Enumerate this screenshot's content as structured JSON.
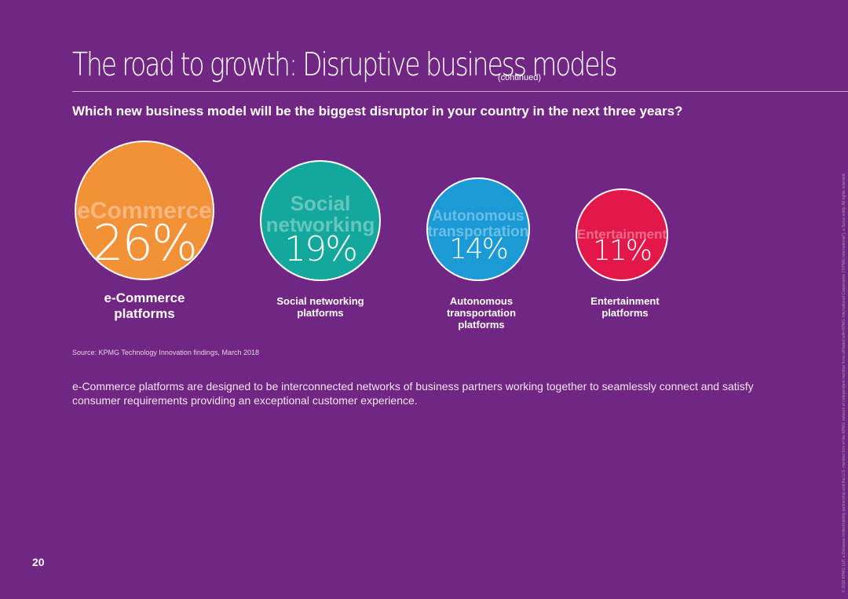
{
  "header": {
    "title": "The road to growth: Disruptive business models",
    "title_suffix": "(continued)"
  },
  "question": "Which new business model will be the biggest disruptor in your country in the next three years?",
  "chart_data": {
    "type": "bubble",
    "categories": [
      "e-Commerce platforms",
      "Social networking platforms",
      "Autonomous transportation platforms",
      "Entertainment platforms"
    ],
    "values": [
      26,
      19,
      14,
      11
    ],
    "unit": "%",
    "value_labels": [
      "26%",
      "19%",
      "14%",
      "11%"
    ],
    "bubble_words": [
      "eCommerce",
      "Social networking",
      "Autonomous transportation",
      "Entertainment"
    ],
    "colors": [
      "#f39138",
      "#14a89c",
      "#1b9ad6",
      "#e2184a"
    ]
  },
  "labels": {
    "ecommerce": [
      "e-Commerce",
      "platforms"
    ],
    "social": [
      "Social networking",
      "platforms"
    ],
    "autonomous": [
      "Autonomous",
      "transportation",
      "platforms"
    ],
    "entertainment": [
      "Entertainment",
      "platforms"
    ]
  },
  "bubble_words": {
    "ecommerce": [
      "eCommerce"
    ],
    "social": [
      "Social",
      "networking"
    ],
    "autonomous": [
      "Autonomous",
      "transportation"
    ],
    "entertainment": [
      "Entertainment"
    ]
  },
  "source": "Source: KPMG Technology Innovation findings, March 2018",
  "body_text": "e-Commerce platforms are designed to be interconnected networks of business partners working together to seamlessly connect and satisfy consumer requirements providing an exceptional customer experience.",
  "page_number": "20",
  "legal": "© 2018 KPMG LLP, a Delaware limited liability partnership and the U.S. member firm of the KPMG network of independent member firms affiliated with KPMG International Cooperative (\"KPMG International\"), a Swiss entity. All rights reserved."
}
